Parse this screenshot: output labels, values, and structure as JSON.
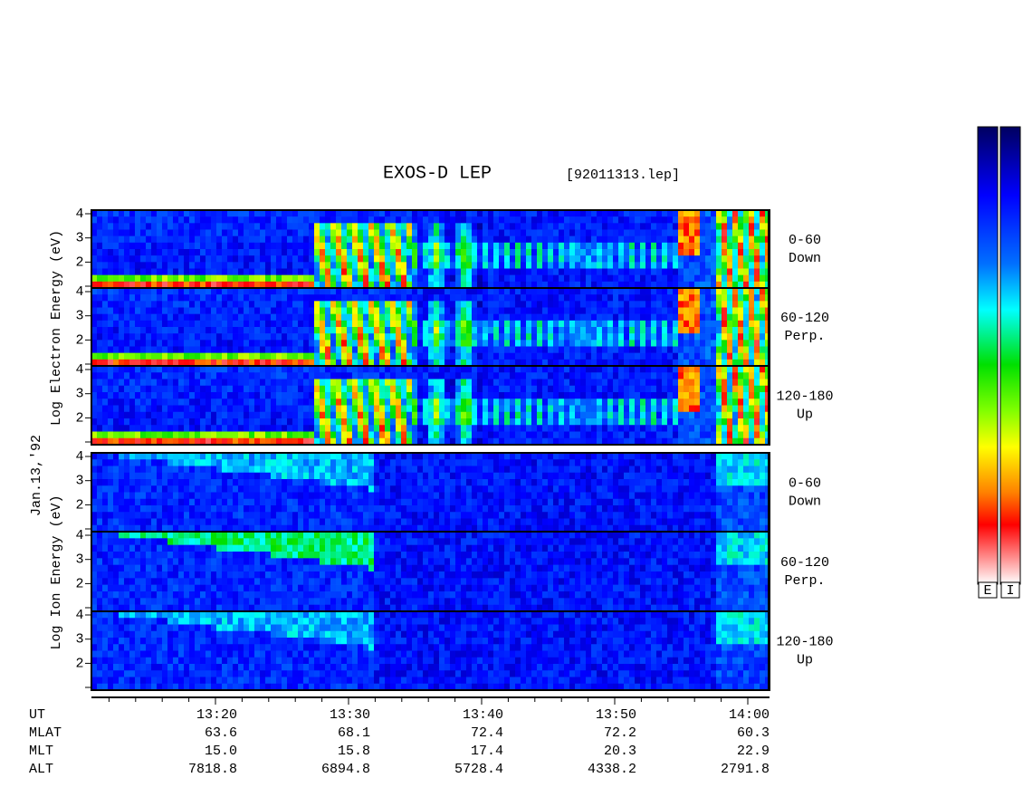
{
  "header": {
    "title": "EXOS-D LEP",
    "file": "[92011313.lep]"
  },
  "date": "Jan.13,'92",
  "electron": {
    "axis_label": "Log Electron Energy (eV)",
    "panels": [
      {
        "label": "0-60",
        "sublabel": "Down",
        "yticks": [
          2,
          3,
          4
        ]
      },
      {
        "label": "60-120",
        "sublabel": "Perp.",
        "yticks": [
          2,
          3,
          4
        ]
      },
      {
        "label": "120-180",
        "sublabel": "Up",
        "yticks": [
          2,
          3,
          4
        ]
      }
    ]
  },
  "ion": {
    "axis_label": "Log Ion Energy (eV)",
    "panels": [
      {
        "label": "0-60",
        "sublabel": "Down",
        "yticks": [
          2,
          3,
          4
        ]
      },
      {
        "label": "60-120",
        "sublabel": "Perp.",
        "yticks": [
          2,
          3,
          4
        ]
      },
      {
        "label": "120-180",
        "sublabel": "Up",
        "yticks": [
          2,
          3,
          4
        ]
      }
    ]
  },
  "orbit": {
    "rows": [
      {
        "name": "UT",
        "values": [
          "13:20",
          "13:30",
          "13:40",
          "13:50",
          "14:00"
        ]
      },
      {
        "name": "MLAT",
        "values": [
          "63.6",
          "68.1",
          "72.4",
          "72.2",
          "60.3"
        ]
      },
      {
        "name": "MLT",
        "values": [
          "15.0",
          "15.8",
          "17.4",
          "20.3",
          "22.9"
        ]
      },
      {
        "name": "ALT",
        "values": [
          "7818.8",
          "6894.8",
          "5728.4",
          "4338.2",
          "2791.8"
        ]
      }
    ]
  },
  "colorbar": {
    "labels": [
      "E",
      "I"
    ]
  }
}
